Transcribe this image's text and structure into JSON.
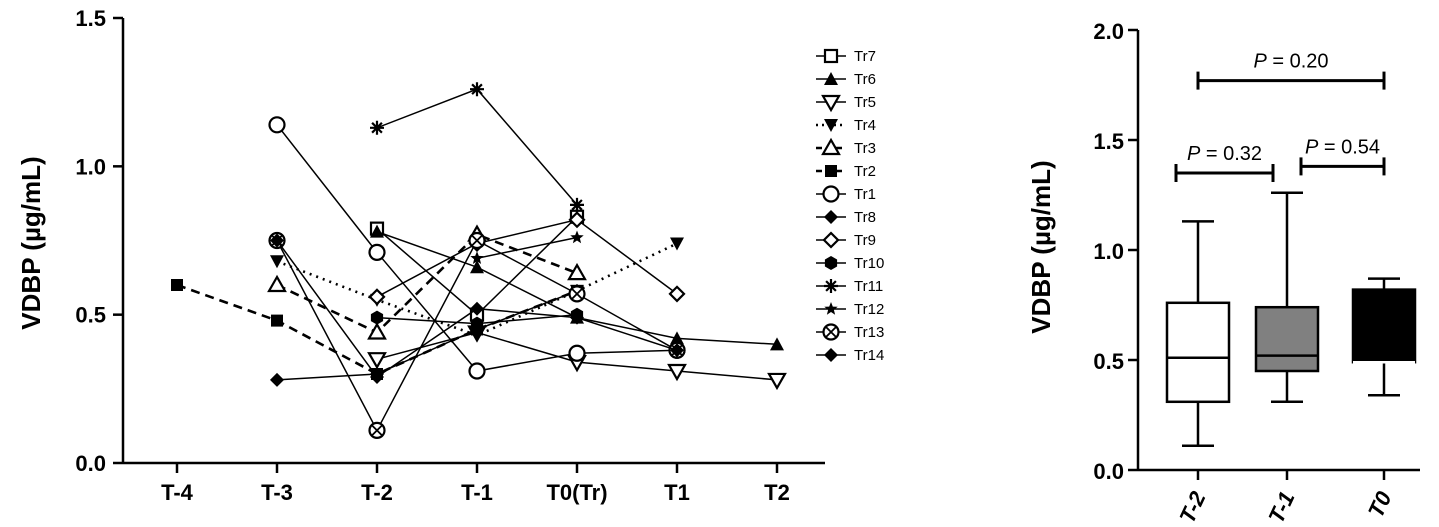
{
  "chart_data": [
    {
      "type": "line",
      "title": "",
      "xlabel": "",
      "ylabel": "VDBP (µg/mL)",
      "categories": [
        "T-4",
        "T-3",
        "T-2",
        "T-1",
        "T0(Tr)",
        "T1",
        "T2"
      ],
      "yticks": [
        "0.0",
        "0.5",
        "1.0",
        "1.5"
      ],
      "ylim": [
        0,
        1.5
      ],
      "legend": "right",
      "series": [
        {
          "name": "Tr7",
          "marker": "square-open",
          "dash": "solid",
          "points": [
            [
              2,
              0.79
            ],
            [
              3,
              0.5
            ],
            [
              4,
              0.83
            ]
          ]
        },
        {
          "name": "Tr6",
          "marker": "triangle-up-filled",
          "dash": "solid",
          "points": [
            [
              2,
              0.78
            ],
            [
              3,
              0.66
            ],
            [
              4,
              0.49
            ],
            [
              5,
              0.42
            ],
            [
              6,
              0.4
            ]
          ]
        },
        {
          "name": "Tr5",
          "marker": "triangle-down-open",
          "dash": "solid",
          "points": [
            [
              2,
              0.35
            ],
            [
              3,
              0.44
            ],
            [
              4,
              0.34
            ],
            [
              5,
              0.31
            ],
            [
              6,
              0.28
            ]
          ]
        },
        {
          "name": "Tr4",
          "marker": "triangle-down-filled",
          "dash": "dotted",
          "points": [
            [
              1,
              0.68
            ],
            [
              2,
              0.55
            ],
            [
              3,
              0.43
            ],
            [
              4,
              0.58
            ],
            [
              5,
              0.74
            ]
          ]
        },
        {
          "name": "Tr3",
          "marker": "triangle-up-open",
          "dash": "dashed",
          "points": [
            [
              1,
              0.6
            ],
            [
              2,
              0.44
            ],
            [
              3,
              0.77
            ],
            [
              4,
              0.64
            ]
          ]
        },
        {
          "name": "Tr2",
          "marker": "square-filled",
          "dash": "dashed",
          "points": [
            [
              0,
              0.6
            ],
            [
              1,
              0.48
            ],
            [
              2,
              0.3
            ],
            [
              3,
              0.45
            ],
            [
              4,
              0.58
            ]
          ]
        },
        {
          "name": "Tr1",
          "marker": "circle-open",
          "dash": "solid",
          "points": [
            [
              1,
              1.14
            ],
            [
              2,
              0.71
            ],
            [
              3,
              0.31
            ],
            [
              4,
              0.37
            ],
            [
              5,
              0.38
            ]
          ]
        },
        {
          "name": "Tr8",
          "marker": "diamond-filled",
          "dash": "solid",
          "points": [
            [
              1,
              0.28
            ],
            [
              2,
              0.3
            ],
            [
              3,
              0.45
            ],
            [
              4,
              0.58
            ]
          ]
        },
        {
          "name": "Tr9",
          "marker": "diamond-open",
          "dash": "solid",
          "points": [
            [
              2,
              0.56
            ],
            [
              3,
              0.74
            ],
            [
              4,
              0.82
            ],
            [
              5,
              0.57
            ]
          ]
        },
        {
          "name": "Tr10",
          "marker": "hexagon-filled",
          "dash": "solid",
          "points": [
            [
              2,
              0.49
            ],
            [
              3,
              0.47
            ],
            [
              4,
              0.5
            ]
          ]
        },
        {
          "name": "Tr11",
          "marker": "asterisk",
          "dash": "solid",
          "points": [
            [
              2,
              1.13
            ],
            [
              3,
              1.26
            ],
            [
              4,
              0.87
            ]
          ]
        },
        {
          "name": "Tr12",
          "marker": "star",
          "dash": "solid",
          "points": [
            [
              3,
              0.69
            ],
            [
              4,
              0.76
            ]
          ]
        },
        {
          "name": "Tr13",
          "marker": "circle-x",
          "dash": "solid",
          "points": [
            [
              1,
              0.75
            ],
            [
              2,
              0.11
            ],
            [
              3,
              0.75
            ],
            [
              4,
              0.57
            ],
            [
              5,
              0.38
            ]
          ]
        },
        {
          "name": "Tr14",
          "marker": "diamond-filled",
          "dash": "solid",
          "points": [
            [
              1,
              0.75
            ],
            [
              2,
              0.29
            ],
            [
              3,
              0.52
            ],
            [
              4,
              0.49
            ],
            [
              5,
              0.38
            ]
          ]
        }
      ]
    },
    {
      "type": "box",
      "title": "",
      "xlabel": "",
      "ylabel": "VDBP (µg/mL)",
      "categories": [
        "T-2",
        "T-1",
        "T0"
      ],
      "yticks": [
        "0.0",
        "0.5",
        "1.0",
        "1.5",
        "2.0"
      ],
      "ylim": [
        0,
        2.0
      ],
      "boxes": [
        {
          "name": "T-2",
          "min": 0.11,
          "q1": 0.31,
          "median": 0.51,
          "q3": 0.76,
          "max": 1.13,
          "fill": "#ffffff"
        },
        {
          "name": "T-1",
          "min": 0.31,
          "q1": 0.45,
          "median": 0.52,
          "q3": 0.74,
          "max": 1.26,
          "fill": "#808080"
        },
        {
          "name": "T0",
          "min": 0.34,
          "q1": 0.49,
          "median": 0.49,
          "q3": 0.82,
          "max": 0.87,
          "fill": "#000000"
        }
      ],
      "comparisons": [
        {
          "from": 0,
          "to": 2,
          "label": "= 0.20",
          "y": 1.77
        },
        {
          "from": 0,
          "to": 1,
          "label": "= 0.32",
          "y": 1.35
        },
        {
          "from": 1,
          "to": 2,
          "label": "= 0.54",
          "y": 1.38
        }
      ],
      "p_symbol": "P"
    }
  ]
}
